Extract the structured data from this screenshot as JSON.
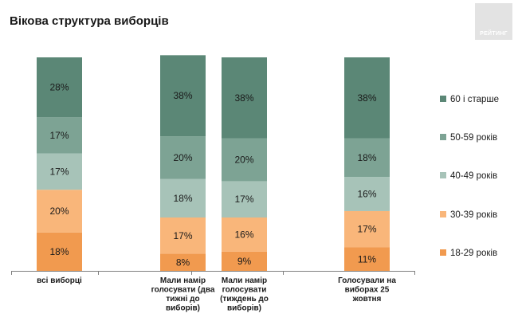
{
  "header": {
    "title": "Вікова структура виборців",
    "logo_text": "РЕЙТИНГ"
  },
  "colors": {
    "60 і старше": "#5b8776",
    "50-59 років": "#7da394",
    "40-49 років": "#a7c3b8",
    "30-39 років": "#f9b67a",
    "18-29 років": "#f19a4f"
  },
  "chart_data": {
    "type": "bar",
    "stacked": true,
    "percent": true,
    "title": "Вікова структура виборців",
    "categories": [
      "всі виборці",
      "Мали намір голосувати (два тижні до виборів)",
      "Мали намір голосувати (тиждень до виборів)",
      "Голосували на виборах 25 жовтня"
    ],
    "category_lines": [
      [
        "всі виборці"
      ],
      [
        "Мали намір",
        "голосувати (два",
        "тижні до",
        "виборів)"
      ],
      [
        "Мали намір",
        "голосувати",
        "(тиждень до",
        "виборів)"
      ],
      [
        "Голосували на",
        "виборах 25",
        "жовтня"
      ]
    ],
    "series": [
      {
        "name": "18-29 років",
        "values": [
          18,
          8,
          9,
          11
        ]
      },
      {
        "name": "30-39 років",
        "values": [
          20,
          17,
          16,
          17
        ]
      },
      {
        "name": "40-49 років",
        "values": [
          17,
          18,
          17,
          16
        ]
      },
      {
        "name": "50-59 років",
        "values": [
          17,
          20,
          20,
          18
        ]
      },
      {
        "name": "60 і старше",
        "values": [
          28,
          38,
          38,
          38
        ]
      }
    ],
    "legend_order": [
      "60 і старше",
      "50-59 років",
      "40-49 років",
      "30-39 років",
      "18-29 років"
    ],
    "legend_position": "right",
    "ylim": [
      0,
      100
    ],
    "value_suffix": "%"
  }
}
